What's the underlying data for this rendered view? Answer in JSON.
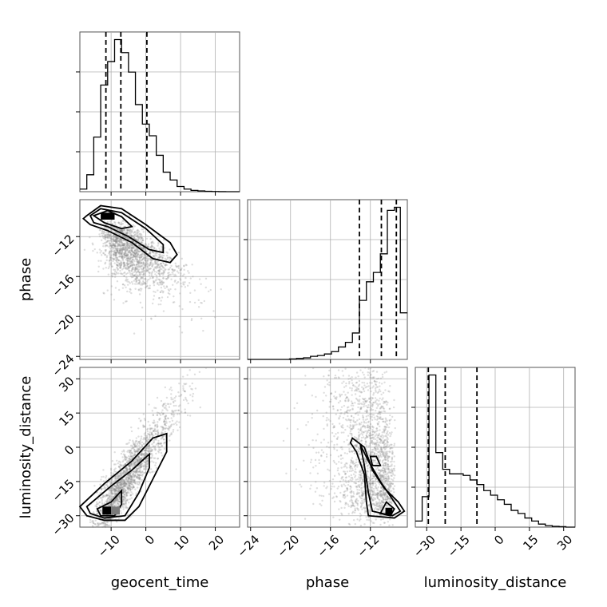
{
  "chart_data": {
    "type": "corner",
    "parameters": [
      "geocent_time",
      "phase",
      "luminosity_distance"
    ],
    "axis_labels": {
      "x": [
        "geocent_time",
        "phase",
        "luminosity_distance"
      ],
      "y_row1": "phase",
      "y_row2": "luminosity_distance"
    },
    "ranges": {
      "geocent_time": [
        -19,
        27
      ],
      "phase": [
        -24.3,
        -8.3
      ],
      "luminosity_distance": [
        -35,
        35
      ]
    },
    "ticks": {
      "geocent_time": [
        -10,
        0,
        10,
        20
      ],
      "geocent_time_labels": [
        "−10",
        "0",
        "10",
        "20"
      ],
      "phase": [
        -24,
        -20,
        -16,
        -12
      ],
      "phase_labels": [
        "−24",
        "−20",
        "−16",
        "−12"
      ],
      "luminosity_distance": [
        -30,
        -15,
        0,
        15,
        30
      ],
      "luminosity_distance_labels": [
        "−30",
        "−15",
        "0",
        "15",
        "30"
      ]
    },
    "hist_geocent_time": {
      "bin_edges": [
        -19,
        -17,
        -15,
        -13,
        -11,
        -9,
        -7,
        -5,
        -3,
        -1,
        1,
        3,
        5,
        7,
        9,
        11,
        13,
        15,
        17,
        19,
        21,
        23,
        25,
        27
      ],
      "counts": [
        2,
        13,
        42,
        82,
        100,
        117,
        107,
        92,
        67,
        52,
        43,
        28,
        15,
        9,
        4,
        2,
        1,
        0.6,
        0.3,
        0.15,
        0.05,
        0,
        0
      ],
      "quantiles": [
        -11.5,
        -7.2,
        0.3
      ]
    },
    "hist_phase": {
      "bin_edges": [
        -24.3,
        -23.6,
        -22.9,
        -22.2,
        -21.5,
        -20.8,
        -20.1,
        -19.4,
        -18.7,
        -18.0,
        -17.3,
        -16.6,
        -15.9,
        -15.2,
        -14.5,
        -13.8,
        -13.1,
        -12.4,
        -11.7,
        -11.0,
        -10.3,
        -9.6,
        -9.0,
        -8.3
      ],
      "counts": [
        0,
        0,
        0,
        0,
        0,
        0,
        0.3,
        0.6,
        1,
        2,
        2.5,
        3.5,
        5,
        8,
        11,
        17,
        38,
        50,
        56,
        68,
        96,
        98,
        30
      ],
      "quantiles": [
        -13.1,
        -10.9,
        -9.4
      ]
    },
    "hist_luminosity_distance": {
      "bin_edges": [
        -35,
        -32,
        -29,
        -26,
        -23,
        -20,
        -17,
        -14,
        -11,
        -8,
        -5,
        -2,
        1,
        4,
        7,
        10,
        13,
        16,
        19,
        22,
        25,
        28,
        31,
        35
      ],
      "counts": [
        4,
        20,
        100,
        49,
        38,
        35,
        35,
        34,
        31,
        28,
        24,
        21,
        18,
        15,
        11,
        9,
        6,
        4,
        2,
        1,
        0.5,
        0.3,
        0
      ],
      "quantiles": [
        -29.3,
        -21.9,
        -8.0
      ]
    },
    "quantile_levels": [
      "0.16",
      "0.5",
      "0.84"
    ],
    "grid": true
  }
}
